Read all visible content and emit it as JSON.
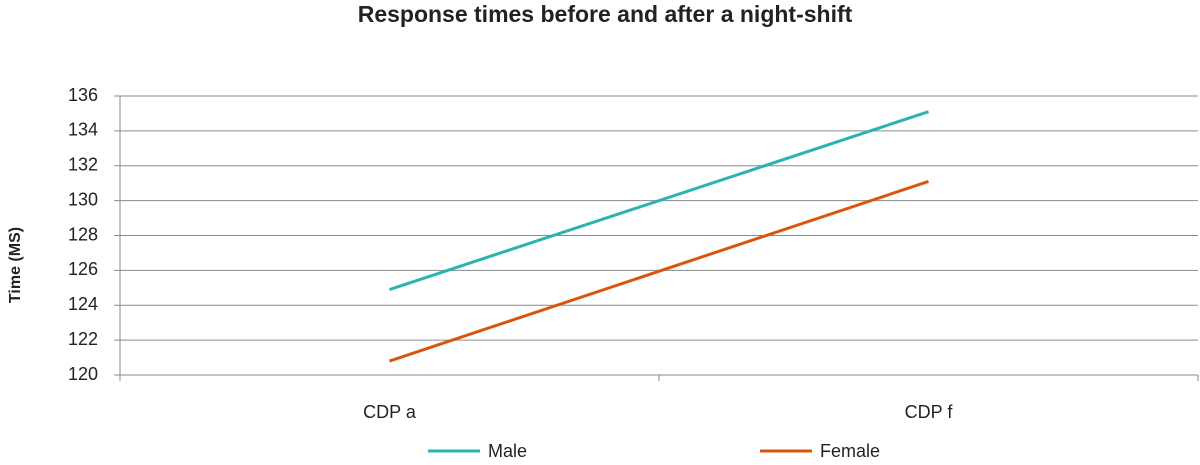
{
  "chart_data": {
    "type": "line",
    "title": "Response times before and after a night-shift",
    "y_label": "Time (MS)",
    "categories": [
      "CDP a",
      "CDP f"
    ],
    "series": [
      {
        "name": "Male",
        "color": "#2ab3b1",
        "values": [
          124.9,
          135.1
        ]
      },
      {
        "name": "Female",
        "color": "#d9540f",
        "values": [
          120.8,
          131.1
        ]
      }
    ],
    "ylim": [
      120,
      136
    ],
    "yticks": [
      120,
      122,
      124,
      126,
      128,
      130,
      132,
      134,
      136
    ],
    "grid": true,
    "legend": "bottom"
  }
}
